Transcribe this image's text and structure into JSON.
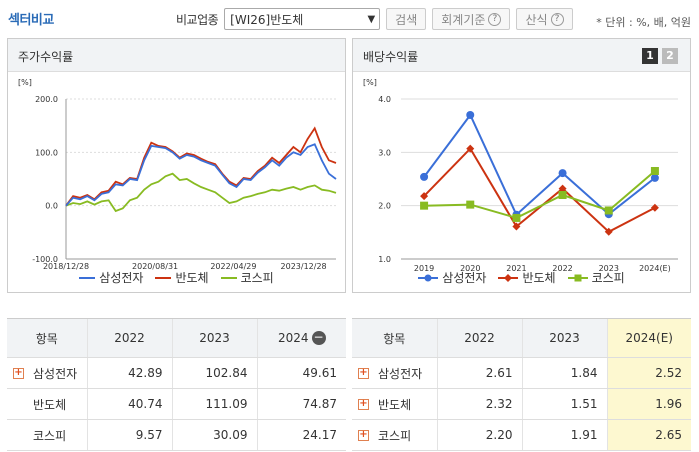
{
  "header": {
    "title": "섹터비교",
    "compare_label": "비교업종",
    "select_value": "[WI26]반도체",
    "search_label": "검색",
    "fiscal_label": "회계기준",
    "formula_label": "산식",
    "unit_text": "* 단위 : %, 배, 억원"
  },
  "left_panel": {
    "title": "주가수익률",
    "unit": "[%]",
    "y_ticks": [
      "200.0",
      "100.0",
      "0.0",
      "-100.0"
    ],
    "x_ticks": [
      "2018/12/28",
      "2020/08/31",
      "2022/04/29",
      "2023/12/28"
    ],
    "legend": [
      "삼성전자",
      "반도체",
      "코스피"
    ]
  },
  "right_panel": {
    "title": "배당수익률",
    "unit": "[%]",
    "page1": "1",
    "page2": "2",
    "y_ticks": [
      "4.0",
      "3.0",
      "2.0",
      "1.0"
    ],
    "legend": [
      "삼성전자",
      "반도체",
      "코스피"
    ]
  },
  "chart_data": [
    {
      "type": "line",
      "title": "주가수익률",
      "ylabel": "[%]",
      "ylim": [
        -100,
        200
      ],
      "x_tick_labels": [
        "2018/12/28",
        "2020/08/31",
        "2022/04/29",
        "2023/12/28"
      ],
      "series": [
        {
          "name": "삼성전자",
          "color": "#3a6fd8",
          "values": [
            0,
            15,
            12,
            18,
            10,
            22,
            25,
            40,
            38,
            50,
            48,
            85,
            112,
            110,
            108,
            100,
            88,
            95,
            92,
            85,
            80,
            75,
            58,
            42,
            35,
            50,
            48,
            62,
            72,
            85,
            75,
            90,
            100,
            95,
            110,
            115,
            85,
            60,
            50
          ]
        },
        {
          "name": "반도체",
          "color": "#cc3311",
          "values": [
            0,
            18,
            15,
            20,
            12,
            25,
            28,
            45,
            40,
            52,
            50,
            90,
            118,
            112,
            110,
            102,
            90,
            98,
            95,
            88,
            82,
            78,
            60,
            45,
            38,
            52,
            50,
            65,
            75,
            90,
            80,
            95,
            110,
            100,
            125,
            145,
            110,
            85,
            80
          ]
        },
        {
          "name": "코스피",
          "color": "#88bb22",
          "values": [
            0,
            5,
            3,
            8,
            2,
            8,
            10,
            -10,
            -5,
            10,
            15,
            30,
            40,
            45,
            55,
            60,
            48,
            50,
            42,
            35,
            30,
            25,
            15,
            5,
            8,
            15,
            18,
            22,
            25,
            30,
            28,
            32,
            35,
            30,
            35,
            38,
            30,
            28,
            24
          ]
        }
      ]
    },
    {
      "type": "line",
      "title": "배당수익률",
      "ylabel": "[%]",
      "ylim": [
        1.0,
        4.0
      ],
      "categories": [
        "2019",
        "2020",
        "2021",
        "2022",
        "2023",
        "2024(E)"
      ],
      "series": [
        {
          "name": "삼성전자",
          "color": "#3a6fd8",
          "values": [
            2.54,
            3.7,
            1.83,
            2.61,
            1.84,
            2.52
          ]
        },
        {
          "name": "반도체",
          "color": "#cc3311",
          "values": [
            2.18,
            3.07,
            1.61,
            2.32,
            1.51,
            1.96
          ]
        },
        {
          "name": "코스피",
          "color": "#88bb22",
          "values": [
            2.0,
            2.02,
            1.77,
            2.2,
            1.91,
            2.65
          ]
        }
      ]
    }
  ],
  "left_table": {
    "headers": [
      "항목",
      "2022",
      "2023",
      "2024"
    ],
    "rows": [
      {
        "name": "삼성전자",
        "v1": "42.89",
        "v2": "102.84",
        "v3": "49.61"
      },
      {
        "name": "반도체",
        "v1": "40.74",
        "v2": "111.09",
        "v3": "74.87"
      },
      {
        "name": "코스피",
        "v1": "9.57",
        "v2": "30.09",
        "v3": "24.17"
      }
    ]
  },
  "right_table": {
    "headers": [
      "항목",
      "2022",
      "2023",
      "2024(E)"
    ],
    "rows": [
      {
        "name": "삼성전자",
        "v1": "2.61",
        "v2": "1.84",
        "v3": "2.52"
      },
      {
        "name": "반도체",
        "v1": "2.32",
        "v2": "1.51",
        "v3": "1.96"
      },
      {
        "name": "코스피",
        "v1": "2.20",
        "v2": "1.91",
        "v3": "2.65"
      }
    ]
  }
}
